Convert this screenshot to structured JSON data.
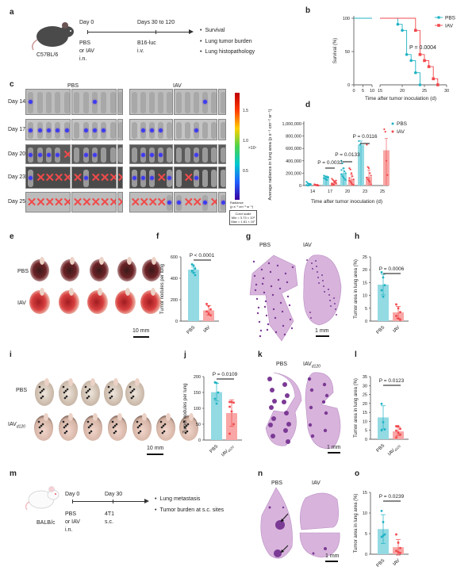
{
  "panel_labels": {
    "a": "a",
    "b": "b",
    "c": "c",
    "d": "d",
    "e": "e",
    "f": "f",
    "g": "g",
    "h": "h",
    "i": "i",
    "j": "j",
    "k": "k",
    "l": "l",
    "m": "m",
    "n": "n",
    "o": "o"
  },
  "colors": {
    "PBS": "#1fb3c4",
    "IAV": "#f0484c",
    "PBS_bar": "#93dae3",
    "IAV_bar": "#f8a7a6"
  },
  "a": {
    "strain": "C57BL/6",
    "day0": "Day 0",
    "day_inoc": "Days 30 to 120",
    "treatment": [
      "PBS",
      "or IAV",
      "i.n."
    ],
    "tumor": [
      "B16-luc",
      "i.v."
    ],
    "outcomes": [
      "Survival",
      "Lung tumor burden",
      "Lung histopathology"
    ]
  },
  "c": {
    "groups": [
      "PBS",
      "IAV"
    ],
    "rows": [
      {
        "day": "Day 14",
        "pbs": "smmmm|mmsmm|m",
        "iav": "mmmmm|mmmsm|m"
      },
      {
        "day": "Day 17",
        "pbs": "sssss|msssm|m",
        "iav": "msssm|mmsmm|m"
      },
      {
        "day": "Day 20",
        "pbs": "ssssx|mssmm|m",
        "iav": "msssm|mmsmm|m"
      },
      {
        "day": "Day 23",
        "pbs": "sxxxx|xsxxx|x",
        "iav": "sssxs|mxsmm|m"
      },
      {
        "day": "Day 25",
        "pbs": "xxxxx|xxxxx|x",
        "iav": "xxxxs|sxxsx|s"
      }
    ],
    "colorbar": {
      "ticks": [
        "1.5",
        "1.0",
        "0.5"
      ],
      "multiplier": "×10⁷",
      "unit_title": "Radiance",
      "unit": "(p s⁻¹ cm⁻² sr⁻¹)",
      "scale_title": "Color scale",
      "min": "Min = 3.73 × 10⁵",
      "max": "Max = 1.81 × 10⁷"
    }
  },
  "e": {
    "rows": [
      "PBS",
      "IAV"
    ],
    "scale": "10 mm"
  },
  "g": {
    "groups": [
      "PBS",
      "IAV"
    ],
    "scale": "1 mm"
  },
  "i": {
    "rows": [
      "PBS",
      "IAV"
    ],
    "row2_sub": "d120",
    "scale": "10 mm"
  },
  "k": {
    "groups": [
      "PBS",
      "IAV"
    ],
    "group2_sub": "d120",
    "scale": "1 mm"
  },
  "m": {
    "strain": "BALB/c",
    "day0": "Day 0",
    "day_inoc": "Day 30",
    "treatment": [
      "PBS",
      "or IAV",
      "i.n."
    ],
    "tumor": [
      "4T1",
      "s.c."
    ],
    "outcomes": [
      "Lung metastasis",
      "Tumor burden at s.c. sites"
    ]
  },
  "n": {
    "groups": [
      "PBS",
      "IAV"
    ],
    "scale": "1 mm"
  },
  "chart_data": [
    {
      "panel": "b",
      "type": "line",
      "style": "survival-step",
      "xlabel": "Time after tumor inoculation (d)",
      "ylabel": "Survival (%)",
      "xticks": [
        0,
        5,
        10,
        15,
        20,
        25,
        30
      ],
      "x_axis_break": [
        10,
        15
      ],
      "ylim": [
        0,
        100
      ],
      "yticks": [
        0,
        50,
        100
      ],
      "legend": "top-right",
      "annotation": "P = 0.0004",
      "series": [
        {
          "name": "PBS",
          "x": [
            0,
            19,
            20,
            21,
            22,
            23,
            24
          ],
          "y": [
            100,
            90.9,
            81.8,
            45.5,
            36.4,
            18.2,
            0
          ]
        },
        {
          "name": "IAV",
          "x": [
            0,
            23,
            24,
            25,
            26,
            27,
            28
          ],
          "y": [
            100,
            81.8,
            45.5,
            36.4,
            27.3,
            9.1,
            0
          ]
        }
      ]
    },
    {
      "panel": "d",
      "type": "bar",
      "xlabel": "Time after tumor inoculation (d)",
      "ylabel": "Average radiance in lung area (p s⁻¹ cm⁻² sr⁻¹)",
      "categories": [
        "14",
        "17",
        "20",
        "23",
        "25"
      ],
      "ylim": [
        0,
        1000000
      ],
      "yticks": [
        0,
        200000,
        400000,
        600000,
        800000,
        1000000
      ],
      "ytick_labels": [
        "0",
        "200,000",
        "400,000",
        "600,000",
        "800,000",
        "1,000,000"
      ],
      "legend": "top-right",
      "series": [
        {
          "name": "PBS",
          "values": [
            20000,
            130000,
            200000,
            660000,
            null
          ],
          "sd": [
            15000,
            25000,
            80000,
            60000,
            null
          ],
          "points": [
            [
              60000,
              40000,
              30000,
              20000,
              10000,
              5000,
              0,
              0,
              15000,
              25000,
              8000
            ],
            [
              160000,
              150000,
              140000,
              135000,
              130000,
              120000,
              110000,
              100000,
              90000,
              140000,
              125000
            ],
            [
              400000,
              360000,
              280000,
              230000,
              200000,
              180000,
              150000,
              130000,
              110000,
              90000,
              250000
            ],
            [
              720000,
              660000
            ],
            []
          ]
        },
        {
          "name": "IAV",
          "values": [
            10000,
            50000,
            100000,
            140000,
            570000
          ],
          "sd": [
            8000,
            30000,
            80000,
            110000,
            190000
          ],
          "points": [
            [
              20000,
              10000,
              5000,
              0,
              0,
              8000,
              15000,
              3000,
              12000
            ],
            [
              110000,
              90000,
              70000,
              50000,
              40000,
              30000,
              20000,
              10000,
              60000,
              80000,
              5000
            ],
            [
              280000,
              260000,
              200000,
              150000,
              100000,
              80000,
              60000,
              40000,
              20000,
              10000,
              120000
            ],
            [
              660000,
              300000,
              280000,
              200000,
              160000,
              130000,
              100000,
              80000,
              60000,
              20000
            ],
            [
              910000,
              870000,
              400000,
              170000
            ]
          ]
        }
      ],
      "annotations": [
        {
          "text": "P = 0.0032",
          "category": "17"
        },
        {
          "text": "P = 0.0133",
          "category": "20"
        },
        {
          "text": "P = 0.0116",
          "category": "23"
        }
      ]
    },
    {
      "panel": "f",
      "type": "bar",
      "ylabel": "Tumor nodules per lung",
      "ylim": [
        0,
        600
      ],
      "yticks": [
        0,
        200,
        400,
        600
      ],
      "annotation": "P < 0.0001",
      "series": [
        {
          "name": "PBS",
          "value": 480,
          "sd": 25,
          "points": [
            530,
            520,
            490,
            470,
            450,
            430
          ]
        },
        {
          "name": "IAV",
          "value": 100,
          "sd": 45,
          "points": [
            160,
            140,
            110,
            90,
            70,
            55
          ]
        }
      ]
    },
    {
      "panel": "h",
      "type": "bar",
      "ylabel": "Tumor area in lung area (%)",
      "ylim": [
        0,
        25
      ],
      "yticks": [
        0,
        5,
        10,
        15,
        20,
        25
      ],
      "annotation": "P = 0.0006",
      "series": [
        {
          "name": "PBS",
          "value": 14.2,
          "sd": 4,
          "points": [
            19,
            17,
            14,
            12,
            9.5
          ]
        },
        {
          "name": "IAV",
          "value": 3.4,
          "sd": 2.3,
          "points": [
            6.5,
            5,
            3.5,
            2,
            1,
            0.5
          ]
        }
      ]
    },
    {
      "panel": "j",
      "type": "bar",
      "ylabel": "Tumor nodules per lung",
      "ylim": [
        0,
        200
      ],
      "yticks": [
        0,
        50,
        100,
        150,
        200
      ],
      "annotation": "P = 0.0109",
      "series": [
        {
          "name": "PBS",
          "value": 151,
          "sd": 28,
          "points": [
            182,
            180,
            150,
            130,
            115
          ]
        },
        {
          "name": "IAV",
          "sub": "d120",
          "value": 85,
          "sd": 42,
          "points": [
            120,
            120,
            118,
            105,
            90,
            50,
            20
          ]
        }
      ]
    },
    {
      "panel": "l",
      "type": "bar",
      "ylabel": "Tumor area in lung area (%)",
      "ylim": [
        0,
        35
      ],
      "yticks": [
        0,
        5,
        10,
        15,
        20,
        25,
        30,
        35
      ],
      "annotation": "P = 0.0123",
      "series": [
        {
          "name": "PBS",
          "value": 12.2,
          "sd": 6.5,
          "points": [
            19.8,
            9.5,
            5.5,
            5
          ]
        },
        {
          "name": "IAV",
          "sub": "d120",
          "value": 4.4,
          "sd": 2.3,
          "points": [
            7.3,
            7.3,
            5.8,
            4.8,
            3.6,
            2.6,
            1
          ]
        }
      ]
    },
    {
      "panel": "o",
      "type": "bar",
      "ylabel": "Tumor area in lung area (%)",
      "ylim": [
        0,
        15
      ],
      "yticks": [
        0,
        5,
        10,
        15
      ],
      "annotation": "P = 0.0239",
      "series": [
        {
          "name": "PBS",
          "value": 6.1,
          "sd": 3.5,
          "points": [
            10.5,
            7.8,
            4.8,
            4.2,
            4.5
          ]
        },
        {
          "name": "IAV",
          "value": 1.7,
          "sd": 1.9,
          "points": [
            4.8,
            2.8,
            1.5,
            0.8,
            0.5,
            0.3
          ]
        }
      ]
    }
  ]
}
